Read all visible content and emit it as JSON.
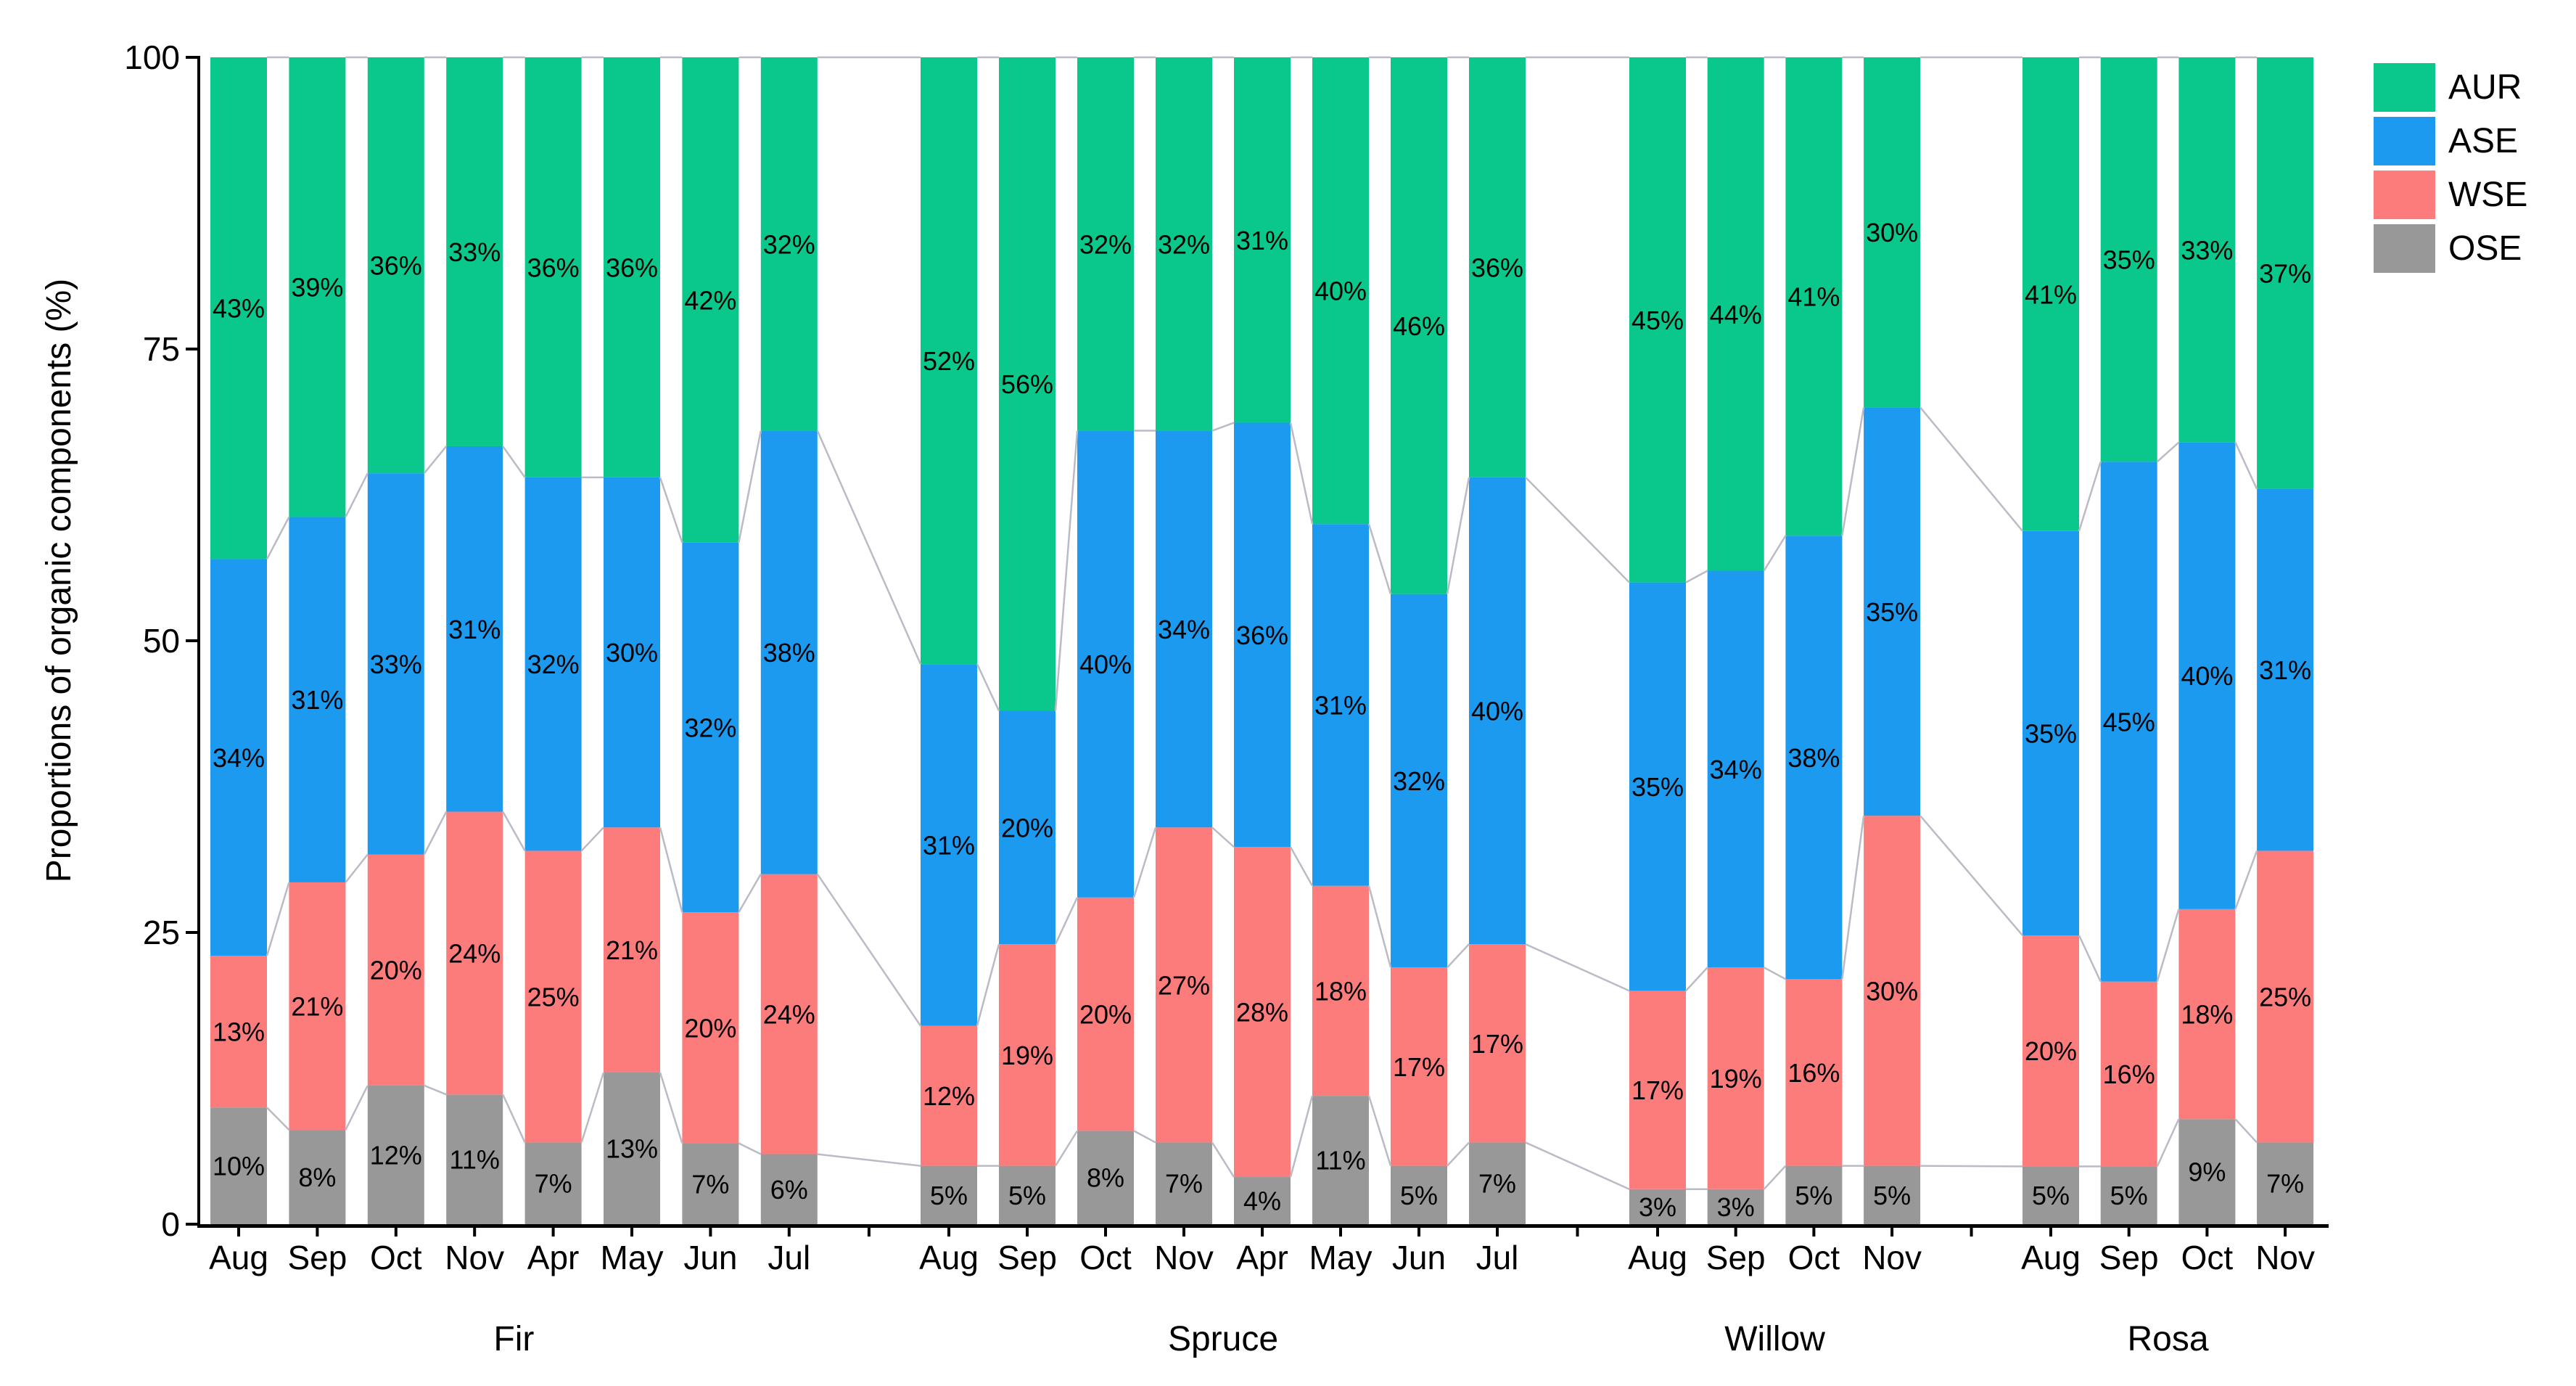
{
  "chart_data": {
    "type": "bar",
    "stacked": true,
    "ylabel": "Proportions of organic components (%)",
    "ylim": [
      0,
      100
    ],
    "yticks": [
      0,
      25,
      50,
      75,
      100
    ],
    "grid": false,
    "legend_position": "top-right",
    "legend": [
      {
        "name": "AUR",
        "color": "#0ac88c"
      },
      {
        "name": "ASE",
        "color": "#1b9af0"
      },
      {
        "name": "WSE",
        "color": "#fc7c7c"
      },
      {
        "name": "OSE",
        "color": "#989898"
      }
    ],
    "stack_order_bottom_to_top": [
      "OSE",
      "WSE",
      "ASE",
      "AUR"
    ],
    "connector_line_color": "#babbc6",
    "value_suffix": "%",
    "groups": [
      {
        "label": "Fir",
        "months": [
          "Aug",
          "Sep",
          "Oct",
          "Nov",
          "Apr",
          "May",
          "Jun",
          "Jul"
        ],
        "values": {
          "OSE": [
            10,
            8,
            12,
            11,
            7,
            13,
            7,
            6
          ],
          "WSE": [
            13,
            21,
            20,
            24,
            25,
            21,
            20,
            24
          ],
          "ASE": [
            34,
            31,
            33,
            31,
            32,
            30,
            32,
            38
          ],
          "AUR": [
            43,
            39,
            36,
            33,
            36,
            36,
            42,
            32
          ]
        }
      },
      {
        "label": "Spruce",
        "months": [
          "Aug",
          "Sep",
          "Oct",
          "Nov",
          "Apr",
          "May",
          "Jun",
          "Jul"
        ],
        "values": {
          "OSE": [
            5,
            5,
            8,
            7,
            4,
            11,
            5,
            7
          ],
          "WSE": [
            12,
            19,
            20,
            27,
            28,
            18,
            17,
            17
          ],
          "ASE": [
            31,
            20,
            40,
            34,
            36,
            31,
            32,
            40
          ],
          "AUR": [
            52,
            56,
            32,
            32,
            31,
            40,
            46,
            36
          ]
        }
      },
      {
        "label": "Willow",
        "months": [
          "Aug",
          "Sep",
          "Oct",
          "Nov"
        ],
        "values": {
          "OSE": [
            3,
            3,
            5,
            5
          ],
          "WSE": [
            17,
            19,
            16,
            30
          ],
          "ASE": [
            35,
            34,
            38,
            35
          ],
          "AUR": [
            45,
            44,
            41,
            30
          ]
        }
      },
      {
        "label": "Rosa",
        "months": [
          "Aug",
          "Sep",
          "Oct",
          "Nov"
        ],
        "values": {
          "OSE": [
            5,
            5,
            9,
            7
          ],
          "WSE": [
            20,
            16,
            18,
            25
          ],
          "ASE": [
            35,
            45,
            40,
            31
          ],
          "AUR": [
            41,
            35,
            33,
            37
          ]
        }
      }
    ]
  }
}
